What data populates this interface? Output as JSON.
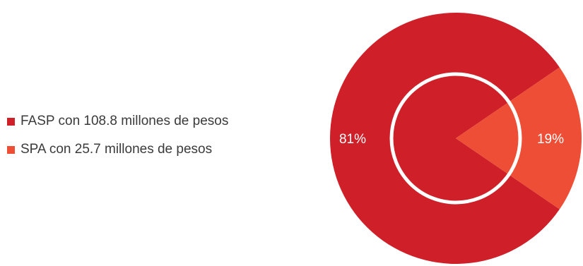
{
  "chart_data": {
    "type": "pie",
    "categories": [
      "FASP con 108.8 millones de pesos",
      "SPA con 25.7 millones de pesos"
    ],
    "values": [
      108.8,
      25.7
    ],
    "percent_labels": [
      "81%",
      "19%"
    ],
    "colors": [
      "#cf1f28",
      "#ee4e36"
    ],
    "legend_position": "left",
    "inner_ring_color": "#ffffff"
  }
}
